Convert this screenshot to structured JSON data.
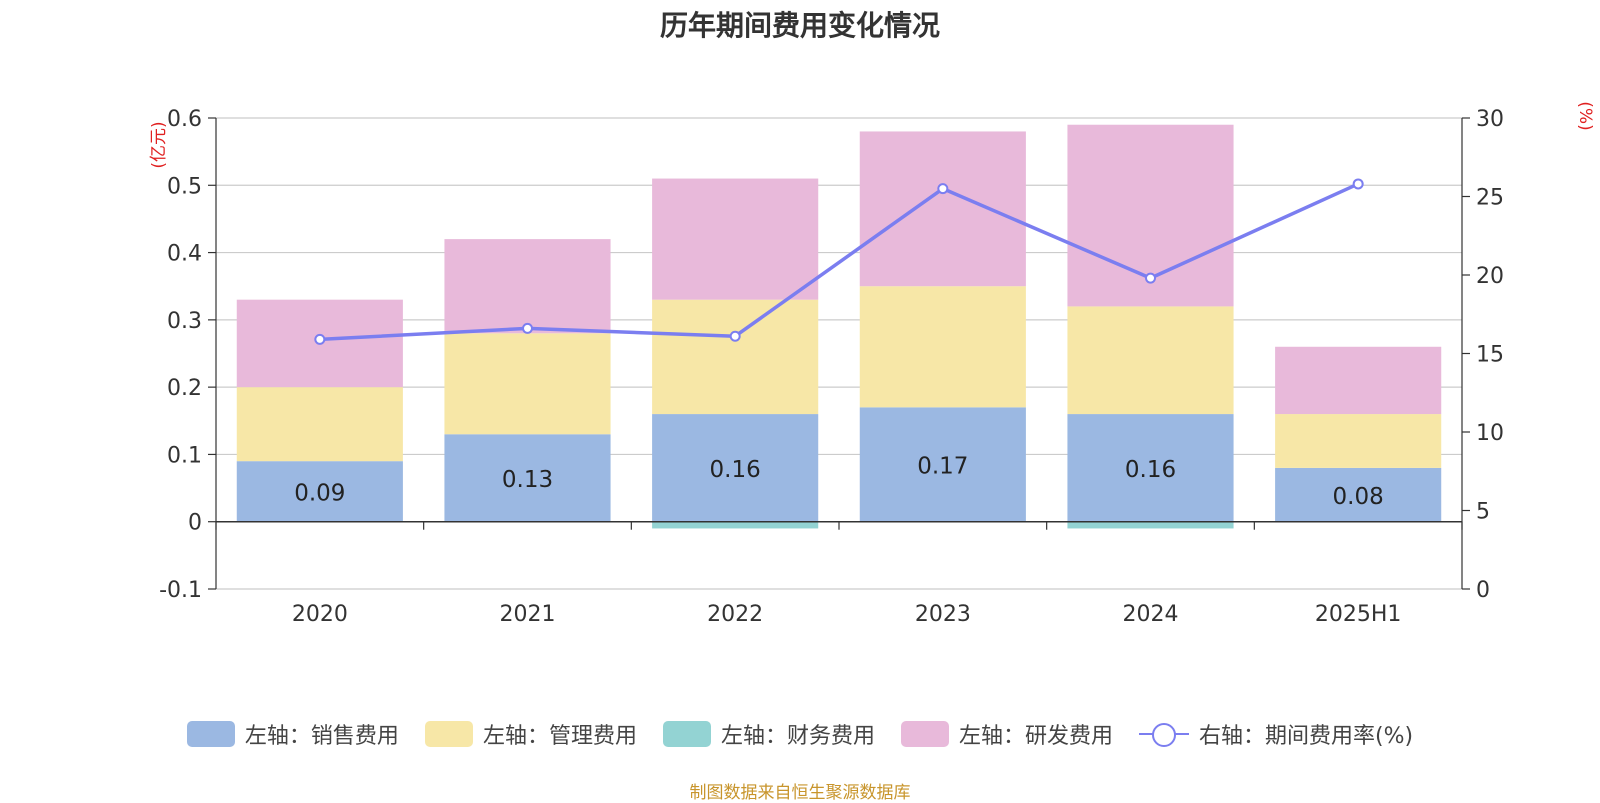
{
  "chart_data": {
    "type": "bar",
    "title": "历年期间费用变化情况",
    "categories": [
      "2020",
      "2021",
      "2022",
      "2023",
      "2024",
      "2025H1"
    ],
    "left_axis": {
      "unit": "(亿元)",
      "ylim": [
        -0.1,
        0.6
      ],
      "ticks": [
        "-0.1",
        "0",
        "0.1",
        "0.2",
        "0.3",
        "0.4",
        "0.5",
        "0.6"
      ]
    },
    "right_axis": {
      "unit": "(%)",
      "ylim": [
        0,
        30
      ],
      "ticks": [
        "0",
        "5",
        "10",
        "15",
        "20",
        "25",
        "30"
      ]
    },
    "series": [
      {
        "name": "左轴：销售费用",
        "type": "bar",
        "stack": "pos",
        "color": "#9bb8e2",
        "show_labels": true,
        "values": [
          0.09,
          0.13,
          0.16,
          0.17,
          0.16,
          0.08
        ]
      },
      {
        "name": "左轴：管理费用",
        "type": "bar",
        "stack": "pos",
        "color": "#f7e7a7",
        "values": [
          0.11,
          0.15,
          0.17,
          0.18,
          0.16,
          0.08
        ]
      },
      {
        "name": "左轴：财务费用",
        "type": "bar",
        "stack": "neg",
        "color": "#93d3d3",
        "values": [
          0.0,
          0.0,
          -0.01,
          0.0,
          -0.01,
          0.0
        ]
      },
      {
        "name": "左轴：研发费用",
        "type": "bar",
        "stack": "pos",
        "color": "#e8b9da",
        "values": [
          0.13,
          0.14,
          0.18,
          0.23,
          0.27,
          0.1
        ]
      },
      {
        "name": "右轴：期间费用率(%)",
        "type": "line",
        "axis": "right",
        "color": "#7b7ef0",
        "values": [
          15.9,
          16.6,
          16.1,
          25.5,
          19.8,
          25.8
        ]
      }
    ],
    "grid": true,
    "legend_position": "bottom"
  },
  "source_note": "制图数据来自恒生聚源数据库"
}
